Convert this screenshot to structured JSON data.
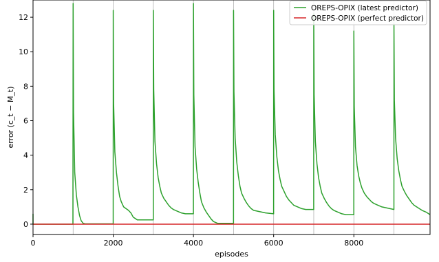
{
  "chart_data": {
    "type": "line",
    "title": "",
    "xlabel": "episodes",
    "ylabel": "error (c_t − M_t)",
    "xlim": [
      0,
      9900
    ],
    "ylim": [
      -0.6,
      13.0
    ],
    "xticks": [
      0,
      2000,
      4000,
      6000,
      8000
    ],
    "yticks": [
      0,
      2,
      4,
      6,
      8,
      10,
      12
    ],
    "grid": "vertical",
    "legend": "top-right",
    "series": [
      {
        "name": "OREPS-OPIX (latest predictor)",
        "color": "#2ca02c",
        "x": [
          0,
          0,
          5,
          5,
          995,
          1000,
          1010,
          1040,
          1080,
          1120,
          1160,
          1200,
          1250,
          1300,
          1999,
          2000,
          2010,
          2040,
          2080,
          2120,
          2160,
          2200,
          2260,
          2320,
          2380,
          2440,
          2500,
          2600,
          2700,
          2999,
          3000,
          3010,
          3040,
          3080,
          3120,
          3160,
          3200,
          3260,
          3320,
          3380,
          3440,
          3500,
          3600,
          3700,
          3800,
          3999,
          4000,
          4010,
          4040,
          4080,
          4120,
          4160,
          4200,
          4260,
          4320,
          4380,
          4440,
          4500,
          4600,
          4700,
          4800,
          4999,
          5000,
          5010,
          5040,
          5080,
          5120,
          5160,
          5200,
          5260,
          5320,
          5380,
          5440,
          5500,
          5600,
          5700,
          5800,
          5999,
          6000,
          6010,
          6040,
          6080,
          6120,
          6160,
          6200,
          6260,
          6320,
          6380,
          6440,
          6500,
          6600,
          6700,
          6800,
          6999,
          7000,
          7010,
          7040,
          7080,
          7120,
          7160,
          7200,
          7260,
          7320,
          7380,
          7440,
          7500,
          7600,
          7700,
          7800,
          7999,
          8000,
          8010,
          8040,
          8080,
          8120,
          8160,
          8200,
          8260,
          8320,
          8380,
          8440,
          8500,
          8600,
          8700,
          8800,
          8999,
          9000,
          9010,
          9040,
          9080,
          9120,
          9160,
          9200,
          9260,
          9320,
          9380,
          9440,
          9500,
          9600,
          9700,
          9800,
          9900
        ],
        "y": [
          0.6,
          0.0,
          0.0,
          0.0,
          0.0,
          12.8,
          6.5,
          3.0,
          1.7,
          1.0,
          0.5,
          0.2,
          0.05,
          0.02,
          0.02,
          12.4,
          7.0,
          4.2,
          3.0,
          2.2,
          1.6,
          1.3,
          1.0,
          0.9,
          0.8,
          0.65,
          0.4,
          0.25,
          0.25,
          0.25,
          12.4,
          7.8,
          4.8,
          3.5,
          2.7,
          2.2,
          1.8,
          1.5,
          1.3,
          1.1,
          0.95,
          0.85,
          0.75,
          0.65,
          0.6,
          0.6,
          12.8,
          7.5,
          4.5,
          3.2,
          2.4,
          1.8,
          1.3,
          0.95,
          0.7,
          0.5,
          0.3,
          0.15,
          0.05,
          0.05,
          0.05,
          0.05,
          12.4,
          7.7,
          5.0,
          3.6,
          2.8,
          2.2,
          1.8,
          1.5,
          1.25,
          1.05,
          0.9,
          0.8,
          0.75,
          0.7,
          0.65,
          0.6,
          12.4,
          7.8,
          5.2,
          3.9,
          3.1,
          2.6,
          2.2,
          1.9,
          1.6,
          1.4,
          1.25,
          1.1,
          1.0,
          0.9,
          0.85,
          0.85,
          12.2,
          7.5,
          4.8,
          3.5,
          2.7,
          2.2,
          1.8,
          1.5,
          1.25,
          1.05,
          0.9,
          0.8,
          0.7,
          0.6,
          0.55,
          0.55,
          11.2,
          6.8,
          4.5,
          3.4,
          2.8,
          2.4,
          2.1,
          1.8,
          1.6,
          1.45,
          1.3,
          1.2,
          1.1,
          1.0,
          0.95,
          0.85,
          11.6,
          7.2,
          5.0,
          3.8,
          3.1,
          2.6,
          2.2,
          1.9,
          1.65,
          1.45,
          1.25,
          1.1,
          0.95,
          0.8,
          0.7,
          0.55
        ]
      },
      {
        "name": "OREPS-OPIX (perfect predictor)",
        "color": "#d62728",
        "x": [
          0,
          9900
        ],
        "y": [
          0,
          0
        ]
      }
    ]
  }
}
